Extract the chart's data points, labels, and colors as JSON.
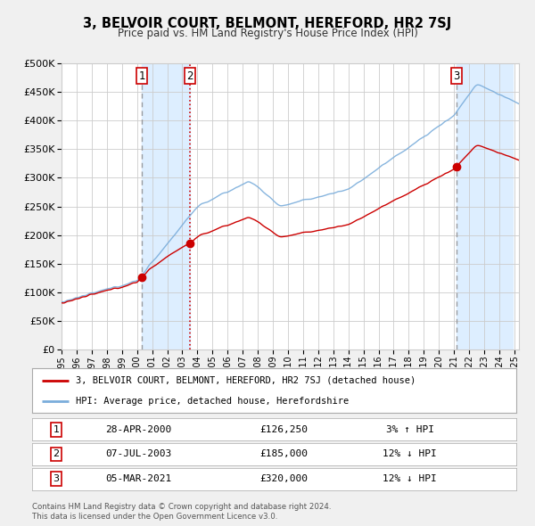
{
  "title": "3, BELVOIR COURT, BELMONT, HEREFORD, HR2 7SJ",
  "subtitle": "Price paid vs. HM Land Registry's House Price Index (HPI)",
  "legend_label_red": "3, BELVOIR COURT, BELMONT, HEREFORD, HR2 7SJ (detached house)",
  "legend_label_blue": "HPI: Average price, detached house, Herefordshire",
  "footer1": "Contains HM Land Registry data © Crown copyright and database right 2024.",
  "footer2": "This data is licensed under the Open Government Licence v3.0.",
  "transactions": [
    {
      "num": 1,
      "date": "28-APR-2000",
      "price": "£126,250",
      "hpi": "3% ↑ HPI",
      "year_x": 2000.32
    },
    {
      "num": 2,
      "date": "07-JUL-2003",
      "price": "£185,000",
      "hpi": "12% ↓ HPI",
      "year_x": 2003.52
    },
    {
      "num": 3,
      "date": "05-MAR-2021",
      "price": "£320,000",
      "hpi": "12% ↓ HPI",
      "year_x": 2021.18
    }
  ],
  "sale_prices": [
    126250,
    185000,
    320000
  ],
  "ylim": [
    0,
    500000
  ],
  "yticks": [
    0,
    50000,
    100000,
    150000,
    200000,
    250000,
    300000,
    350000,
    400000,
    450000,
    500000
  ],
  "xlim_start": 1995.0,
  "xlim_end": 2025.3,
  "bg_color": "#f0f0f0",
  "plot_bg_color": "#ffffff",
  "red_color": "#cc0000",
  "blue_color": "#7aaddb",
  "shade_color": "#ddeeff",
  "grid_color": "#cccccc",
  "hatch_color": "#bbbbbb"
}
